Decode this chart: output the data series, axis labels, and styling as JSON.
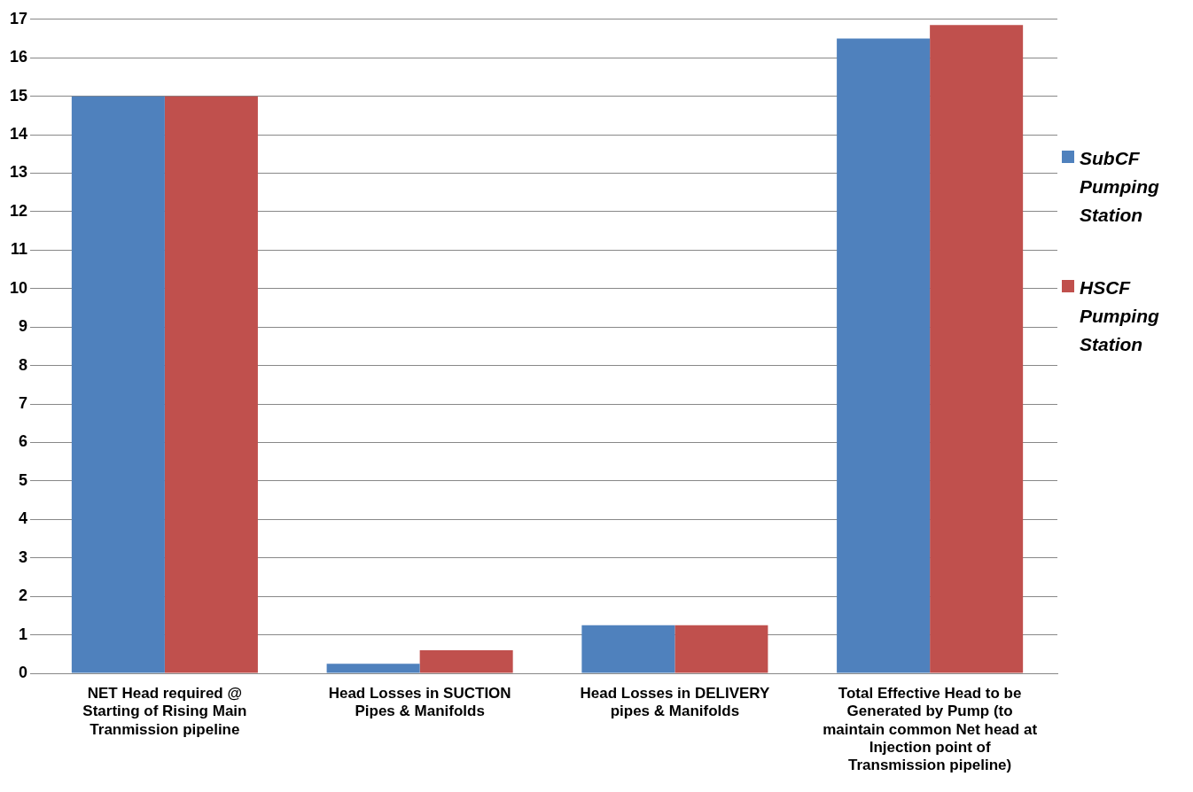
{
  "chart_data": {
    "type": "bar",
    "categories": [
      "NET Head required @ Starting of Rising Main Tranmission pipeline",
      "Head Losses in SUCTION Pipes & Manifolds",
      "Head Losses in DELIVERY pipes & Manifolds",
      "Total Effective Head to be Generated by Pump (to maintain common Net head at Injection point of Transmission pipeline)"
    ],
    "series": [
      {
        "name": "SubCF Pumping Station",
        "color": "#4f81bd",
        "values": [
          15,
          0.25,
          1.25,
          16.5
        ]
      },
      {
        "name": "HSCF Pumping Station",
        "color": "#c0504d",
        "values": [
          15,
          0.6,
          1.25,
          16.85
        ]
      }
    ],
    "ylim": [
      0,
      17
    ],
    "yticks": [
      0,
      1,
      2,
      3,
      4,
      5,
      6,
      7,
      8,
      9,
      10,
      11,
      12,
      13,
      14,
      15,
      16,
      17
    ],
    "grid": "y",
    "legend": "right"
  }
}
